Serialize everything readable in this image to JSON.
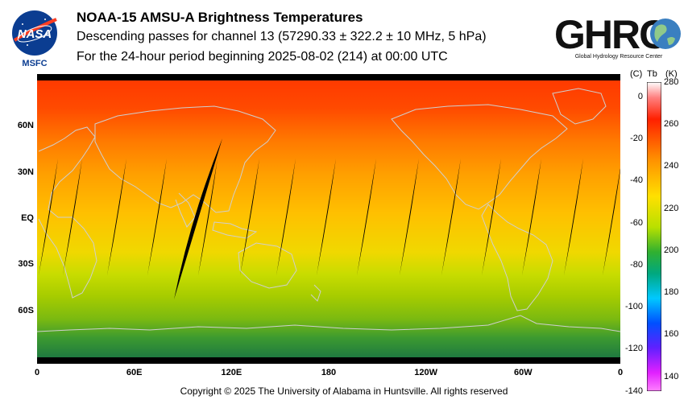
{
  "header": {
    "title": "NOAA-15 AMSU-A Brightness Temperatures",
    "subtitle": "Descending passes for channel 13 (57290.33 ± 322.2 ± 10 MHz, 5 hPa)",
    "period": "For the 24-hour period beginning 2025-08-02 (214) at 00:00 UTC"
  },
  "logos": {
    "nasa_text": "NASA",
    "nasa_sub": "MSFC",
    "ghrc_text": "GHRC",
    "ghrc_sub": "Global Hydrology Resource Center"
  },
  "map": {
    "lat_labels": [
      "60N",
      "30N",
      "EQ",
      "30S",
      "60S"
    ],
    "lat_values": [
      60,
      30,
      0,
      -30,
      -60
    ],
    "lon_labels": [
      "0",
      "60E",
      "120E",
      "180",
      "120W",
      "60W",
      "0"
    ],
    "lon_values": [
      0,
      60,
      120,
      180,
      240,
      300,
      360
    ],
    "swath_gap_color": "#000000",
    "coastline_color": "#c8c8c8"
  },
  "colorbar": {
    "unit_c": "(C)",
    "unit_tb": "Tb",
    "unit_k": "(K)",
    "celsius_ticks": [
      "0",
      "-20",
      "-40",
      "-60",
      "-80",
      "-100",
      "-120",
      "-140"
    ],
    "kelvin_ticks": [
      "280",
      "260",
      "240",
      "220",
      "200",
      "180",
      "160",
      "140"
    ],
    "kelvin_range": [
      133,
      280
    ]
  },
  "footer": {
    "copyright": "Copyright © 2025 The University of Alabama in Huntsville.  All rights reserved"
  }
}
